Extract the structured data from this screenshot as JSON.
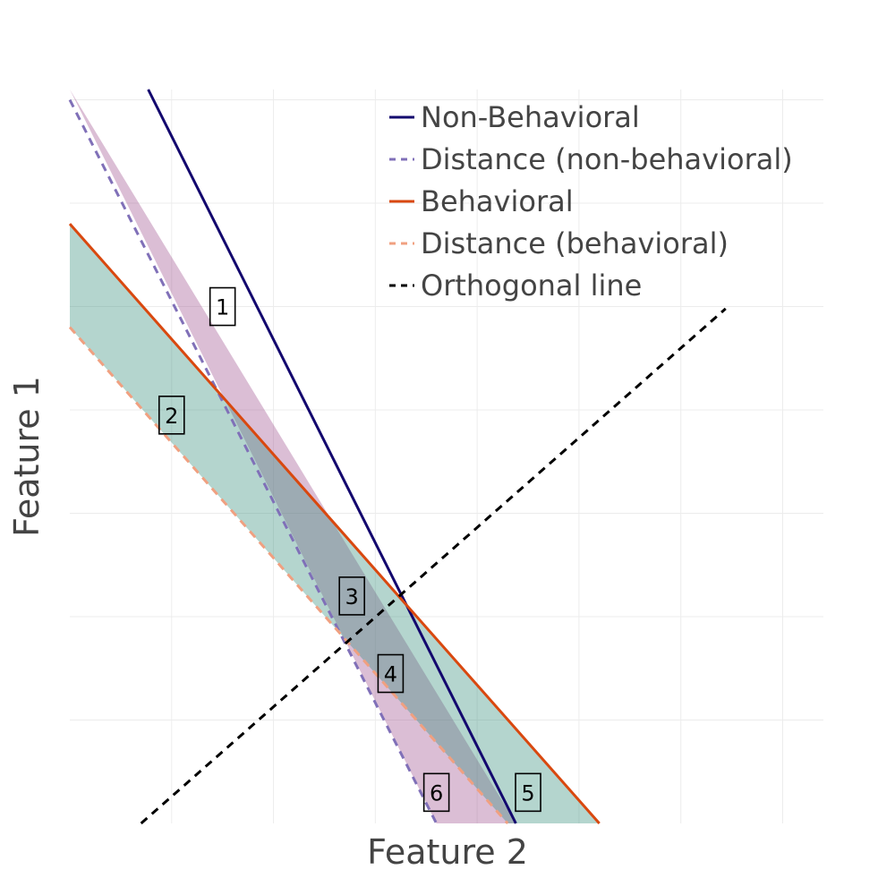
{
  "chart_data": {
    "type": "line",
    "xlabel": "Feature 2",
    "ylabel": "Feature 1",
    "xlim": [
      0,
      7.4
    ],
    "ylim": [
      0,
      7.1
    ],
    "grid": true,
    "legend_position": "top-right",
    "series": [
      {
        "name": "Non-Behavioral",
        "style": "solid",
        "color": "#13076e",
        "x": [
          0.77,
          4.38
        ],
        "y": [
          7.1,
          0.0
        ]
      },
      {
        "name": "Distance (non-behavioral)",
        "style": "dashed",
        "color": "#8070b8",
        "x": [
          0.0,
          3.6
        ],
        "y": [
          7.0,
          0.0
        ]
      },
      {
        "name": "Behavioral",
        "style": "solid",
        "color": "#d9480f",
        "x": [
          0.0,
          5.2
        ],
        "y": [
          5.8,
          0.0
        ]
      },
      {
        "name": "Distance (behavioral)",
        "style": "dashed",
        "color": "#f0a080",
        "x": [
          0.0,
          4.3
        ],
        "y": [
          4.8,
          0.0
        ]
      },
      {
        "name": "Orthogonal line",
        "style": "dashed",
        "color": "#000000",
        "x": [
          0.7,
          6.44
        ],
        "y": [
          0.0,
          4.98
        ]
      }
    ],
    "bands": [
      {
        "between": [
          "Non-Behavioral",
          "Distance (non-behavioral)"
        ],
        "color": "#9c4a8a"
      },
      {
        "between": [
          "Behavioral",
          "Distance (behavioral)"
        ],
        "color": "#2e8b78"
      }
    ],
    "annotations": [
      {
        "text": "1",
        "x": 1.5,
        "y": 5.0
      },
      {
        "text": "2",
        "x": 1.0,
        "y": 3.95
      },
      {
        "text": "3",
        "x": 2.77,
        "y": 2.2
      },
      {
        "text": "4",
        "x": 3.15,
        "y": 1.45
      },
      {
        "text": "5",
        "x": 4.5,
        "y": 0.3
      },
      {
        "text": "6",
        "x": 3.6,
        "y": 0.3
      }
    ]
  }
}
